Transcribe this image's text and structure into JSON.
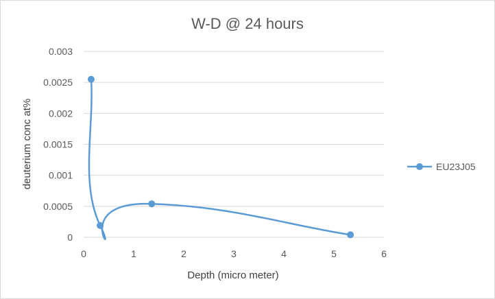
{
  "chart_data": {
    "type": "scatter",
    "title": "W-D @ 24 hours",
    "xlabel": "Depth (micro meter)",
    "ylabel": "deuterium conc at%",
    "xlim": [
      0,
      6
    ],
    "ylim": [
      0,
      0.003
    ],
    "x_ticks": [
      "0",
      "1",
      "2",
      "3",
      "4",
      "5",
      "6"
    ],
    "y_ticks": [
      "0",
      "0.0005",
      "0.001",
      "0.0015",
      "0.002",
      "0.0025",
      "0.003"
    ],
    "grid": "horizontal",
    "smoothed_line": true,
    "legend_position": "right",
    "series": [
      {
        "name": "EU23J05",
        "color": "#5b9bd5",
        "x": [
          0.15,
          0.33,
          1.36,
          5.33
        ],
        "y": [
          0.00255,
          0.00019,
          0.00054,
          4e-05
        ]
      }
    ]
  }
}
